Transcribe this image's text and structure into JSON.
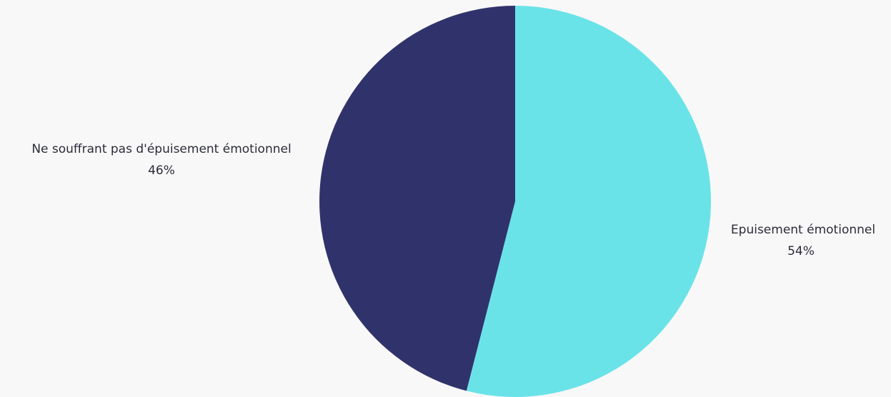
{
  "chart_data": {
    "type": "pie",
    "slices": [
      {
        "label": "Epuisement émotionnel",
        "value": 54,
        "display": "54%",
        "color": "#6ae3e8"
      },
      {
        "label": "Ne souffrant pas d'épuisement émotionnel",
        "value": 46,
        "display": "46%",
        "color": "#30336b"
      }
    ],
    "start": "top",
    "direction": "clockwise"
  }
}
